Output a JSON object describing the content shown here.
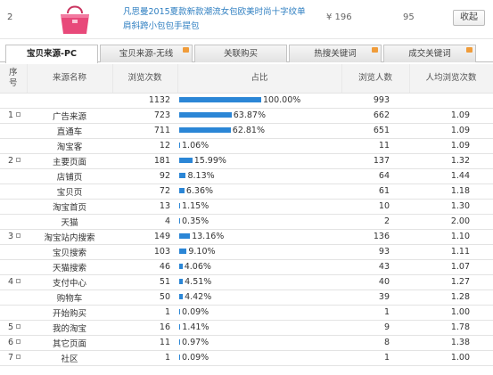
{
  "product": {
    "index": "2",
    "title": "凡思曼2015夏款新款潮流女包欧美时尚十字纹单肩斜跨小包包手提包",
    "price": "¥ 196",
    "count": "95",
    "fav_label": "收起"
  },
  "tabs": [
    {
      "label": "宝贝来源-PC",
      "active": true,
      "hot": false
    },
    {
      "label": "宝贝来源-无线",
      "active": false,
      "hot": true
    },
    {
      "label": "关联购买",
      "active": false,
      "hot": false
    },
    {
      "label": "热搜关键词",
      "active": false,
      "hot": true
    },
    {
      "label": "成交关键词",
      "active": false,
      "hot": true
    }
  ],
  "table": {
    "headers": {
      "index": "序\n号",
      "source": "来源名称",
      "pv": "浏览次数",
      "share": "占比",
      "uv": "浏览人数",
      "avg": "人均浏览次数"
    },
    "rows": [
      {
        "index": "",
        "source": "",
        "pv": "1132",
        "share": 100.0,
        "share_label": "100.00%",
        "uv": "993",
        "avg": ""
      },
      {
        "index": "1",
        "source": "广告来源",
        "pv": "723",
        "share": 63.87,
        "share_label": "63.87%",
        "uv": "662",
        "avg": "1.09"
      },
      {
        "index": "",
        "source": "直通车",
        "pv": "711",
        "share": 62.81,
        "share_label": "62.81%",
        "uv": "651",
        "avg": "1.09"
      },
      {
        "index": "",
        "source": "淘宝客",
        "pv": "12",
        "share": 1.06,
        "share_label": "1.06%",
        "uv": "11",
        "avg": "1.09"
      },
      {
        "index": "2",
        "source": "主要页面",
        "pv": "181",
        "share": 15.99,
        "share_label": "15.99%",
        "uv": "137",
        "avg": "1.32"
      },
      {
        "index": "",
        "source": "店铺页",
        "pv": "92",
        "share": 8.13,
        "share_label": "8.13%",
        "uv": "64",
        "avg": "1.44"
      },
      {
        "index": "",
        "source": "宝贝页",
        "pv": "72",
        "share": 6.36,
        "share_label": "6.36%",
        "uv": "61",
        "avg": "1.18"
      },
      {
        "index": "",
        "source": "淘宝首页",
        "pv": "13",
        "share": 1.15,
        "share_label": "1.15%",
        "uv": "10",
        "avg": "1.30"
      },
      {
        "index": "",
        "source": "天猫",
        "pv": "4",
        "share": 0.35,
        "share_label": "0.35%",
        "uv": "2",
        "avg": "2.00"
      },
      {
        "index": "3",
        "source": "淘宝站内搜索",
        "pv": "149",
        "share": 13.16,
        "share_label": "13.16%",
        "uv": "136",
        "avg": "1.10"
      },
      {
        "index": "",
        "source": "宝贝搜索",
        "pv": "103",
        "share": 9.1,
        "share_label": "9.10%",
        "uv": "93",
        "avg": "1.11"
      },
      {
        "index": "",
        "source": "天猫搜索",
        "pv": "46",
        "share": 4.06,
        "share_label": "4.06%",
        "uv": "43",
        "avg": "1.07"
      },
      {
        "index": "4",
        "source": "支付中心",
        "pv": "51",
        "share": 4.51,
        "share_label": "4.51%",
        "uv": "40",
        "avg": "1.27"
      },
      {
        "index": "",
        "source": "购物车",
        "pv": "50",
        "share": 4.42,
        "share_label": "4.42%",
        "uv": "39",
        "avg": "1.28"
      },
      {
        "index": "",
        "source": "开始购买",
        "pv": "1",
        "share": 0.09,
        "share_label": "0.09%",
        "uv": "1",
        "avg": "1.00"
      },
      {
        "index": "5",
        "source": "我的淘宝",
        "pv": "16",
        "share": 1.41,
        "share_label": "1.41%",
        "uv": "9",
        "avg": "1.78"
      },
      {
        "index": "6",
        "source": "其它页面",
        "pv": "11",
        "share": 0.97,
        "share_label": "0.97%",
        "uv": "8",
        "avg": "1.38"
      },
      {
        "index": "7",
        "source": "社区",
        "pv": "1",
        "share": 0.09,
        "share_label": "0.09%",
        "uv": "1",
        "avg": "1.00"
      }
    ]
  },
  "colors": {
    "bar": "#2b86d6",
    "link": "#2f7fc1",
    "bag": "#e8497a"
  }
}
